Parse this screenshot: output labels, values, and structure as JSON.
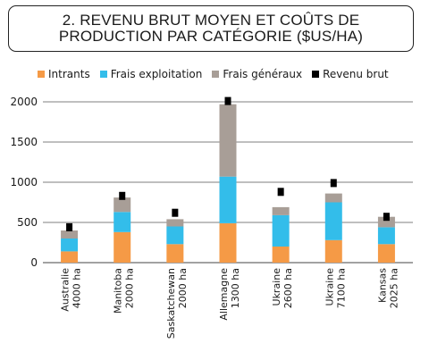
{
  "title": {
    "line1": "2. REVENU BRUT MOYEN ET COÛTS DE",
    "line2": "PRODUCTION PAR CATÉGORIE ($US/HA)"
  },
  "legend": [
    {
      "name": "Intrants",
      "color": "#f59a46"
    },
    {
      "name": "Frais exploitation",
      "color": "#33bdea"
    },
    {
      "name": "Frais généraux",
      "color": "#a89e97"
    },
    {
      "name": "Revenu brut",
      "color": "#000000"
    }
  ],
  "chart_data": {
    "type": "bar",
    "stacked": true,
    "title": "2. REVENU BRUT MOYEN ET COÛTS DE PRODUCTION PAR CATÉGORIE ($US/HA)",
    "categories": [
      {
        "name": "Australie",
        "size": "4000 ha"
      },
      {
        "name": "Manitoba",
        "size": "2000 ha"
      },
      {
        "name": "Saskatchewan",
        "size": "2000 ha"
      },
      {
        "name": "Allemagne",
        "size": "1300 ha"
      },
      {
        "name": "Ukraine",
        "size": "2600 ha"
      },
      {
        "name": "Ukraine",
        "size": "7100 ha"
      },
      {
        "name": "Kansas",
        "size": "2025 ha"
      }
    ],
    "series": [
      {
        "name": "Intrants",
        "color": "#f59a46",
        "values": [
          140,
          380,
          230,
          490,
          200,
          280,
          230
        ]
      },
      {
        "name": "Frais exploitation",
        "color": "#33bdea",
        "values": [
          160,
          250,
          220,
          580,
          390,
          470,
          210
        ]
      },
      {
        "name": "Frais généraux",
        "color": "#a89e97",
        "values": [
          100,
          180,
          90,
          900,
          100,
          110,
          130
        ]
      }
    ],
    "markers": {
      "name": "Revenu brut",
      "color": "#000000",
      "values": [
        440,
        830,
        620,
        2010,
        880,
        990,
        570
      ]
    },
    "ylim": [
      0,
      2100
    ],
    "yticks": [
      0,
      500,
      1000,
      1500,
      2000
    ],
    "grid": true,
    "legend_position": "top"
  }
}
